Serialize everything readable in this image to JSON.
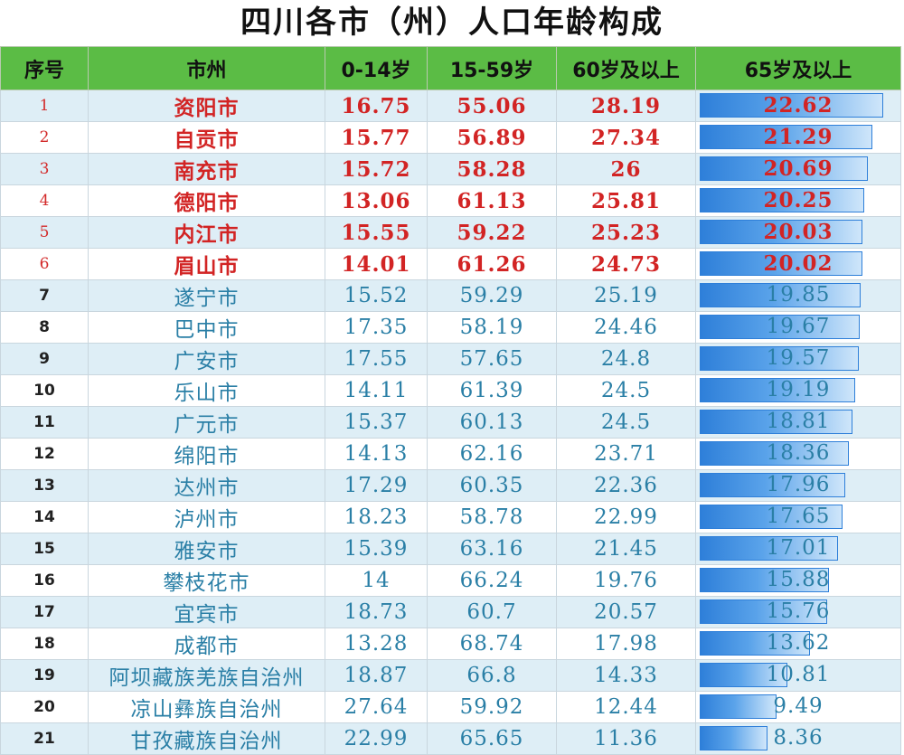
{
  "chart_data": {
    "type": "table",
    "title": "四川各市（州）人口年龄构成",
    "columns": [
      "序号",
      "市州",
      "0-14岁",
      "15-59岁",
      "60岁及以上",
      "65岁及以上"
    ],
    "bar_column": "65岁及以上",
    "bar_max": 22.62,
    "highlight_color": "#d22424",
    "normal_color": "#2a7fa6",
    "header_color": "#5bbc45",
    "bar_color": "#2e7fd9",
    "rows": [
      {
        "idx": "1",
        "city": "资阳市",
        "a": "16.75",
        "b": "55.06",
        "c": "28.19",
        "d": "22.62",
        "v": 22.62,
        "hl": true
      },
      {
        "idx": "2",
        "city": "自贡市",
        "a": "15.77",
        "b": "56.89",
        "c": "27.34",
        "d": "21.29",
        "v": 21.29,
        "hl": true
      },
      {
        "idx": "3",
        "city": "南充市",
        "a": "15.72",
        "b": "58.28",
        "c": "26",
        "d": "20.69",
        "v": 20.69,
        "hl": true
      },
      {
        "idx": "4",
        "city": "德阳市",
        "a": "13.06",
        "b": "61.13",
        "c": "25.81",
        "d": "20.25",
        "v": 20.25,
        "hl": true
      },
      {
        "idx": "5",
        "city": "内江市",
        "a": "15.55",
        "b": "59.22",
        "c": "25.23",
        "d": "20.03",
        "v": 20.03,
        "hl": true
      },
      {
        "idx": "6",
        "city": "眉山市",
        "a": "14.01",
        "b": "61.26",
        "c": "24.73",
        "d": "20.02",
        "v": 20.02,
        "hl": true
      },
      {
        "idx": "7",
        "city": "遂宁市",
        "a": "15.52",
        "b": "59.29",
        "c": "25.19",
        "d": "19.85",
        "v": 19.85,
        "hl": false
      },
      {
        "idx": "8",
        "city": "巴中市",
        "a": "17.35",
        "b": "58.19",
        "c": "24.46",
        "d": "19.67",
        "v": 19.67,
        "hl": false
      },
      {
        "idx": "9",
        "city": "广安市",
        "a": "17.55",
        "b": "57.65",
        "c": "24.8",
        "d": "19.57",
        "v": 19.57,
        "hl": false
      },
      {
        "idx": "10",
        "city": "乐山市",
        "a": "14.11",
        "b": "61.39",
        "c": "24.5",
        "d": "19.19",
        "v": 19.19,
        "hl": false
      },
      {
        "idx": "11",
        "city": "广元市",
        "a": "15.37",
        "b": "60.13",
        "c": "24.5",
        "d": "18.81",
        "v": 18.81,
        "hl": false
      },
      {
        "idx": "12",
        "city": "绵阳市",
        "a": "14.13",
        "b": "62.16",
        "c": "23.71",
        "d": "18.36",
        "v": 18.36,
        "hl": false
      },
      {
        "idx": "13",
        "city": "达州市",
        "a": "17.29",
        "b": "60.35",
        "c": "22.36",
        "d": "17.96",
        "v": 17.96,
        "hl": false
      },
      {
        "idx": "14",
        "city": "泸州市",
        "a": "18.23",
        "b": "58.78",
        "c": "22.99",
        "d": "17.65",
        "v": 17.65,
        "hl": false
      },
      {
        "idx": "15",
        "city": "雅安市",
        "a": "15.39",
        "b": "63.16",
        "c": "21.45",
        "d": "17.01",
        "v": 17.01,
        "hl": false
      },
      {
        "idx": "16",
        "city": "攀枝花市",
        "a": "14",
        "b": "66.24",
        "c": "19.76",
        "d": "15.88",
        "v": 15.88,
        "hl": false
      },
      {
        "idx": "17",
        "city": "宜宾市",
        "a": "18.73",
        "b": "60.7",
        "c": "20.57",
        "d": "15.76",
        "v": 15.76,
        "hl": false
      },
      {
        "idx": "18",
        "city": "成都市",
        "a": "13.28",
        "b": "68.74",
        "c": "17.98",
        "d": "13.62",
        "v": 13.62,
        "hl": false
      },
      {
        "idx": "19",
        "city": "阿坝藏族羌族自治州",
        "a": "18.87",
        "b": "66.8",
        "c": "14.33",
        "d": "10.81",
        "v": 10.81,
        "hl": false
      },
      {
        "idx": "20",
        "city": "凉山彝族自治州",
        "a": "27.64",
        "b": "59.92",
        "c": "12.44",
        "d": "9.49",
        "v": 9.49,
        "hl": false
      },
      {
        "idx": "21",
        "city": "甘孜藏族自治州",
        "a": "22.99",
        "b": "65.65",
        "c": "11.36",
        "d": "8.36",
        "v": 8.36,
        "hl": false
      }
    ]
  }
}
